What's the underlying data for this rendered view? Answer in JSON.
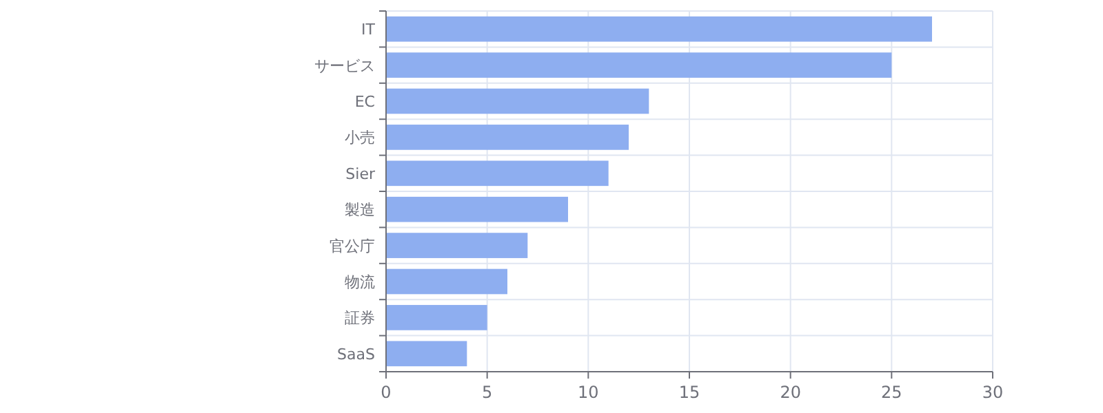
{
  "chart_data": {
    "type": "bar",
    "orientation": "horizontal",
    "categories": [
      "IT",
      "サービス",
      "EC",
      "小売",
      "Sier",
      "製造",
      "官公庁",
      "物流",
      "証券",
      "SaaS"
    ],
    "values": [
      27,
      25,
      13,
      12,
      11,
      9,
      7,
      6,
      5,
      4
    ],
    "color": "#8eaef0",
    "xlim": [
      0,
      30
    ],
    "xticks": [
      0,
      5,
      10,
      15,
      20,
      25,
      30
    ],
    "grid": true
  }
}
